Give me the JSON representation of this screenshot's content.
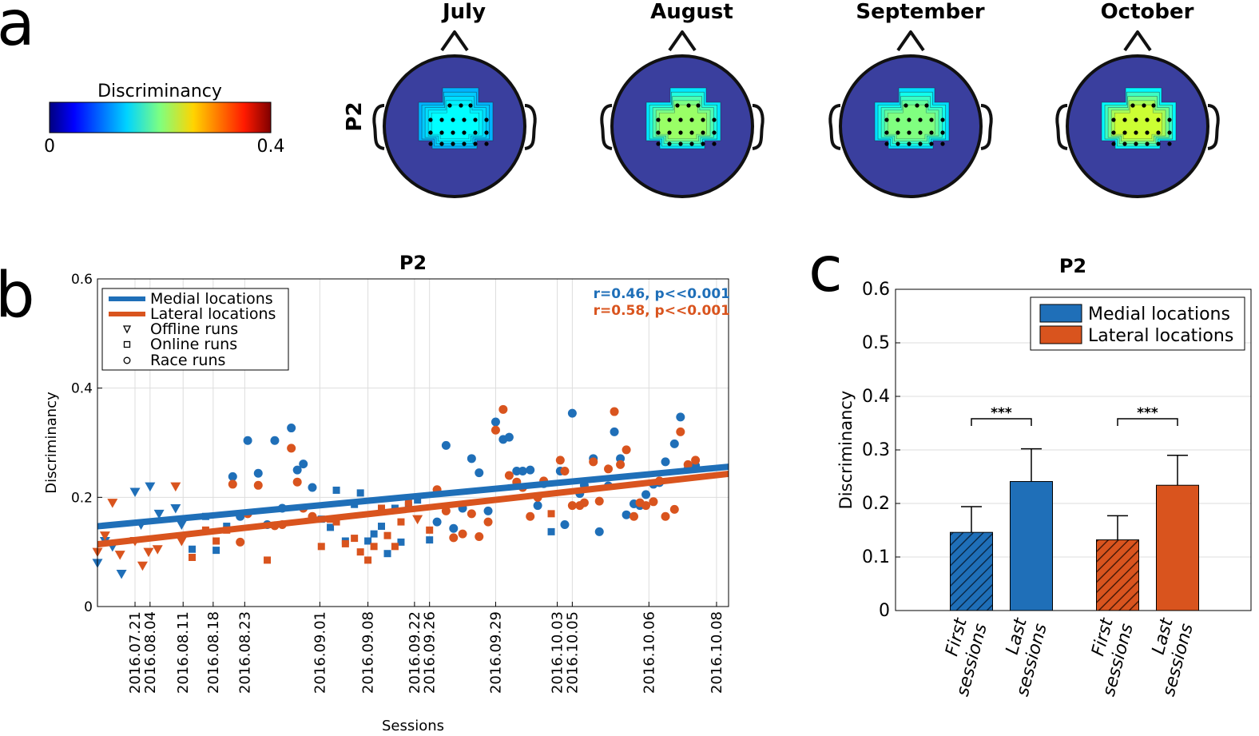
{
  "panel_letters": {
    "a": "a",
    "b": "b",
    "c": "c"
  },
  "topomaps": {
    "row_label": "P2",
    "months": [
      "July",
      "August",
      "September",
      "October"
    ],
    "intensity": [
      0.15,
      0.21,
      0.2,
      0.23
    ],
    "colorbar": {
      "label": "Discriminancy",
      "min_label": "0",
      "max_label": "0.4",
      "min": 0,
      "max": 0.4
    }
  },
  "colors": {
    "medial": "#1f6fb8",
    "lateral": "#d9541e",
    "head": "#3a3f9e"
  },
  "chart_data": [
    {
      "type": "scatter",
      "title": "P2",
      "xlabel": "Sessions",
      "ylabel": "Discriminancy",
      "ylim": [
        0,
        0.6
      ],
      "yticks": [
        "0",
        "0.2",
        "0.4",
        "0.6"
      ],
      "xlim": [
        0,
        42
      ],
      "session_ticks": [
        {
          "pos": 2.5,
          "label": "2016.07.21"
        },
        {
          "pos": 3.5,
          "label": "2016.08.04"
        },
        {
          "pos": 5.7,
          "label": "2016.08.11"
        },
        {
          "pos": 7.7,
          "label": "2016.08.18"
        },
        {
          "pos": 9.8,
          "label": "2016.08.23"
        },
        {
          "pos": 14.8,
          "label": "2016.09.01"
        },
        {
          "pos": 18.0,
          "label": "2016.09.08"
        },
        {
          "pos": 21.1,
          "label": "2016.09.22"
        },
        {
          "pos": 22.1,
          "label": "2016.09.26"
        },
        {
          "pos": 26.5,
          "label": "2016.09.29"
        },
        {
          "pos": 30.6,
          "label": "2016.10.03"
        },
        {
          "pos": 31.6,
          "label": "2016.10.05"
        },
        {
          "pos": 36.7,
          "label": "2016.10.06"
        },
        {
          "pos": 41.2,
          "label": "2016.10.08"
        }
      ],
      "legend": [
        {
          "label": "Medial locations",
          "kind": "line",
          "series": "medial"
        },
        {
          "label": "Lateral locations",
          "kind": "line",
          "series": "lateral"
        },
        {
          "label": "Offline runs",
          "kind": "triangle"
        },
        {
          "label": "Online runs",
          "kind": "square"
        },
        {
          "label": "Race runs",
          "kind": "circle"
        }
      ],
      "legend_position": "top-left",
      "grid": true,
      "annotations": [
        {
          "text": "r=0.46, p<<0.001",
          "series": "medial"
        },
        {
          "text": "r=0.58, p<<0.001",
          "series": "lateral"
        }
      ],
      "fit_lines": {
        "medial": {
          "y_start": 0.147,
          "y_end": 0.256
        },
        "lateral": {
          "y_start": 0.114,
          "y_end": 0.243
        }
      },
      "series": [
        {
          "name": "Medial locations",
          "key": "medial",
          "points": [
            [
              0.0,
              0.08,
              "t"
            ],
            [
              0.5,
              0.12,
              "t"
            ],
            [
              1.0,
              0.11,
              "t"
            ],
            [
              1.6,
              0.06,
              "t"
            ],
            [
              2.5,
              0.21,
              "t"
            ],
            [
              3.5,
              0.22,
              "t"
            ],
            [
              2.9,
              0.15,
              "t"
            ],
            [
              4.1,
              0.17,
              "t"
            ],
            [
              5.2,
              0.18,
              "t"
            ],
            [
              5.6,
              0.15,
              "t"
            ],
            [
              6.3,
              0.105,
              "s"
            ],
            [
              7.2,
              0.165,
              "s"
            ],
            [
              7.9,
              0.103,
              "s"
            ],
            [
              8.6,
              0.147,
              "s"
            ],
            [
              9.0,
              0.238,
              "c"
            ],
            [
              9.5,
              0.165,
              "c"
            ],
            [
              10.0,
              0.304,
              "c"
            ],
            [
              10.7,
              0.244,
              "c"
            ],
            [
              11.3,
              0.15,
              "c"
            ],
            [
              11.8,
              0.304,
              "c"
            ],
            [
              12.3,
              0.18,
              "c"
            ],
            [
              12.9,
              0.327,
              "c"
            ],
            [
              13.3,
              0.25,
              "c"
            ],
            [
              13.7,
              0.261,
              "c"
            ],
            [
              14.3,
              0.218,
              "c"
            ],
            [
              14.9,
              0.16,
              "s"
            ],
            [
              15.5,
              0.145,
              "s"
            ],
            [
              15.9,
              0.213,
              "s"
            ],
            [
              16.5,
              0.12,
              "s"
            ],
            [
              17.1,
              0.187,
              "s"
            ],
            [
              17.5,
              0.208,
              "s"
            ],
            [
              18.0,
              0.12,
              "s"
            ],
            [
              18.4,
              0.133,
              "s"
            ],
            [
              18.9,
              0.147,
              "s"
            ],
            [
              19.3,
              0.097,
              "s"
            ],
            [
              19.8,
              0.18,
              "s"
            ],
            [
              20.2,
              0.118,
              "s"
            ],
            [
              20.7,
              0.185,
              "s"
            ],
            [
              21.3,
              0.195,
              "s"
            ],
            [
              22.1,
              0.122,
              "s"
            ],
            [
              22.6,
              0.155,
              "c"
            ],
            [
              23.2,
              0.295,
              "c"
            ],
            [
              23.7,
              0.143,
              "c"
            ],
            [
              24.3,
              0.18,
              "c"
            ],
            [
              24.9,
              0.271,
              "c"
            ],
            [
              25.4,
              0.245,
              "c"
            ],
            [
              26.0,
              0.175,
              "c"
            ],
            [
              26.5,
              0.338,
              "c"
            ],
            [
              27.0,
              0.306,
              "c"
            ],
            [
              27.4,
              0.31,
              "c"
            ],
            [
              27.9,
              0.248,
              "c"
            ],
            [
              28.3,
              0.248,
              "c"
            ],
            [
              28.8,
              0.25,
              "c"
            ],
            [
              29.3,
              0.185,
              "c"
            ],
            [
              29.7,
              0.225,
              "c"
            ],
            [
              30.2,
              0.137,
              "s"
            ],
            [
              30.8,
              0.248,
              "c"
            ],
            [
              31.1,
              0.15,
              "c"
            ],
            [
              31.6,
              0.354,
              "c"
            ],
            [
              32.1,
              0.207,
              "c"
            ],
            [
              32.4,
              0.222,
              "c"
            ],
            [
              33.0,
              0.271,
              "c"
            ],
            [
              33.4,
              0.137,
              "c"
            ],
            [
              34.0,
              0.221,
              "c"
            ],
            [
              34.4,
              0.32,
              "c"
            ],
            [
              34.8,
              0.271,
              "c"
            ],
            [
              35.2,
              0.168,
              "c"
            ],
            [
              35.7,
              0.188,
              "c"
            ],
            [
              36.1,
              0.185,
              "c"
            ],
            [
              36.5,
              0.205,
              "c"
            ],
            [
              37.0,
              0.224,
              "c"
            ],
            [
              37.4,
              0.227,
              "c"
            ],
            [
              37.8,
              0.265,
              "c"
            ],
            [
              38.4,
              0.298,
              "c"
            ],
            [
              38.8,
              0.347,
              "c"
            ],
            [
              39.3,
              0.252,
              "c"
            ],
            [
              39.8,
              0.258,
              "c"
            ]
          ]
        },
        {
          "name": "Lateral locations",
          "key": "lateral",
          "points": [
            [
              0.0,
              0.1,
              "t"
            ],
            [
              0.5,
              0.13,
              "t"
            ],
            [
              1.0,
              0.19,
              "t"
            ],
            [
              1.5,
              0.095,
              "t"
            ],
            [
              2.5,
              0.12,
              "t"
            ],
            [
              3.0,
              0.075,
              "t"
            ],
            [
              3.4,
              0.1,
              "t"
            ],
            [
              4.0,
              0.105,
              "t"
            ],
            [
              5.2,
              0.22,
              "t"
            ],
            [
              5.6,
              0.12,
              "t"
            ],
            [
              6.3,
              0.09,
              "s"
            ],
            [
              7.2,
              0.14,
              "s"
            ],
            [
              7.9,
              0.12,
              "s"
            ],
            [
              8.6,
              0.14,
              "s"
            ],
            [
              9.0,
              0.224,
              "c"
            ],
            [
              9.5,
              0.118,
              "c"
            ],
            [
              10.0,
              0.17,
              "c"
            ],
            [
              10.7,
              0.222,
              "c"
            ],
            [
              11.3,
              0.085,
              "s"
            ],
            [
              11.8,
              0.148,
              "c"
            ],
            [
              12.3,
              0.15,
              "c"
            ],
            [
              12.9,
              0.29,
              "c"
            ],
            [
              13.3,
              0.228,
              "c"
            ],
            [
              13.7,
              0.18,
              "c"
            ],
            [
              14.3,
              0.165,
              "c"
            ],
            [
              14.9,
              0.11,
              "s"
            ],
            [
              15.5,
              0.16,
              "s"
            ],
            [
              15.9,
              0.155,
              "s"
            ],
            [
              16.5,
              0.115,
              "s"
            ],
            [
              17.1,
              0.125,
              "s"
            ],
            [
              17.5,
              0.1,
              "s"
            ],
            [
              18.0,
              0.085,
              "s"
            ],
            [
              18.4,
              0.11,
              "s"
            ],
            [
              18.9,
              0.18,
              "s"
            ],
            [
              19.3,
              0.13,
              "s"
            ],
            [
              19.8,
              0.11,
              "s"
            ],
            [
              20.2,
              0.155,
              "s"
            ],
            [
              20.7,
              0.19,
              "s"
            ],
            [
              21.3,
              0.16,
              "t"
            ],
            [
              22.1,
              0.14,
              "s"
            ],
            [
              22.6,
              0.214,
              "c"
            ],
            [
              23.2,
              0.175,
              "c"
            ],
            [
              23.7,
              0.126,
              "c"
            ],
            [
              24.3,
              0.133,
              "c"
            ],
            [
              24.9,
              0.17,
              "c"
            ],
            [
              25.4,
              0.128,
              "c"
            ],
            [
              26.0,
              0.155,
              "c"
            ],
            [
              26.5,
              0.323,
              "c"
            ],
            [
              27.0,
              0.361,
              "c"
            ],
            [
              27.4,
              0.24,
              "c"
            ],
            [
              27.9,
              0.228,
              "c"
            ],
            [
              28.3,
              0.218,
              "c"
            ],
            [
              28.8,
              0.165,
              "c"
            ],
            [
              29.3,
              0.2,
              "c"
            ],
            [
              29.7,
              0.23,
              "c"
            ],
            [
              30.2,
              0.17,
              "s"
            ],
            [
              30.8,
              0.268,
              "c"
            ],
            [
              31.1,
              0.248,
              "c"
            ],
            [
              31.6,
              0.185,
              "c"
            ],
            [
              32.1,
              0.185,
              "c"
            ],
            [
              32.4,
              0.19,
              "c"
            ],
            [
              33.0,
              0.265,
              "c"
            ],
            [
              33.4,
              0.193,
              "c"
            ],
            [
              34.0,
              0.252,
              "c"
            ],
            [
              34.4,
              0.357,
              "c"
            ],
            [
              34.8,
              0.26,
              "c"
            ],
            [
              35.2,
              0.287,
              "c"
            ],
            [
              35.7,
              0.165,
              "c"
            ],
            [
              36.1,
              0.19,
              "c"
            ],
            [
              36.5,
              0.185,
              "c"
            ],
            [
              37.0,
              0.192,
              "c"
            ],
            [
              37.4,
              0.23,
              "c"
            ],
            [
              37.8,
              0.165,
              "c"
            ],
            [
              38.4,
              0.178,
              "c"
            ],
            [
              38.8,
              0.32,
              "c"
            ],
            [
              39.3,
              0.26,
              "c"
            ],
            [
              39.8,
              0.268,
              "c"
            ]
          ]
        }
      ]
    },
    {
      "type": "bar",
      "title": "P2",
      "ylabel": "Discriminancy",
      "ylim": [
        0,
        0.6
      ],
      "yticks": [
        "0",
        "0.1",
        "0.2",
        "0.3",
        "0.4",
        "0.5",
        "0.6"
      ],
      "grid": true,
      "legend": [
        {
          "label": "Medial locations",
          "series": "medial"
        },
        {
          "label": "Lateral locations",
          "series": "lateral"
        }
      ],
      "legend_position": "top-right",
      "categories": [
        "First sessions",
        "Last sessions",
        "First sessions",
        "Last sessions"
      ],
      "category_lines": [
        [
          "First",
          "sessions"
        ],
        [
          "Last",
          "sessions"
        ],
        [
          "First",
          "sessions"
        ],
        [
          "Last",
          "sessions"
        ]
      ],
      "bars": [
        {
          "series": "medial",
          "value": 0.146,
          "error": 0.048,
          "hatched": true
        },
        {
          "series": "medial",
          "value": 0.241,
          "error": 0.061,
          "hatched": false
        },
        {
          "series": "lateral",
          "value": 0.132,
          "error": 0.045,
          "hatched": true
        },
        {
          "series": "lateral",
          "value": 0.234,
          "error": 0.056,
          "hatched": false
        }
      ],
      "significance": [
        {
          "text": "***",
          "from": 0,
          "to": 1
        },
        {
          "text": "***",
          "from": 2,
          "to": 3
        }
      ]
    }
  ]
}
